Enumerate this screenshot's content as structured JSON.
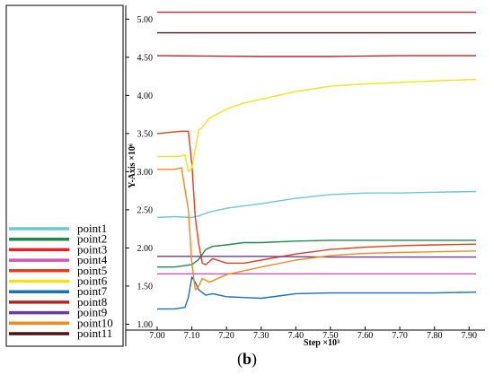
{
  "panel_label": {
    "open": "(",
    "letter": "b",
    "close": ")"
  },
  "chart_data": {
    "type": "line",
    "title": "",
    "xlabel": "Step ×10³",
    "ylabel": "Y-Axis ×10⁶",
    "xlim": [
      7.0,
      7.92
    ],
    "ylim": [
      0.97,
      5.18
    ],
    "xticks": [
      "7.00",
      "7.10",
      "7.20",
      "7.30",
      "7.40",
      "7.50",
      "7.60",
      "7.70",
      "7.80",
      "7.90"
    ],
    "yticks": [
      "1.00",
      "1.50",
      "2.00",
      "2.50",
      "3.00",
      "3.50",
      "4.00",
      "4.50",
      "5.00"
    ],
    "grid": false,
    "legend_position": "left-bottom",
    "series": [
      {
        "name": "point1",
        "color": "#6ec6d6",
        "x": [
          7.0,
          7.05,
          7.1,
          7.12,
          7.15,
          7.2,
          7.25,
          7.3,
          7.4,
          7.5,
          7.6,
          7.7,
          7.8,
          7.92
        ],
        "y": [
          2.4,
          2.41,
          2.4,
          2.42,
          2.47,
          2.52,
          2.55,
          2.58,
          2.65,
          2.7,
          2.72,
          2.72,
          2.73,
          2.74
        ]
      },
      {
        "name": "point2",
        "color": "#1f8a4a",
        "x": [
          7.0,
          7.05,
          7.1,
          7.12,
          7.14,
          7.16,
          7.2,
          7.25,
          7.3,
          7.4,
          7.5,
          7.6,
          7.7,
          7.8,
          7.92
        ],
        "y": [
          1.75,
          1.75,
          1.78,
          1.85,
          1.98,
          2.02,
          2.04,
          2.07,
          2.07,
          2.09,
          2.1,
          2.1,
          2.1,
          2.1,
          2.1
        ]
      },
      {
        "name": "point3",
        "color": "#e8202a",
        "x": [
          7.0,
          7.3,
          7.5,
          7.7,
          7.92
        ],
        "y": [
          5.09,
          5.09,
          5.09,
          5.09,
          5.09
        ]
      },
      {
        "name": "point4",
        "color": "#d057b4",
        "x": [
          7.0,
          7.3,
          7.5,
          7.7,
          7.92
        ],
        "y": [
          1.66,
          1.66,
          1.66,
          1.66,
          1.66
        ]
      },
      {
        "name": "point5",
        "color": "#e0401e",
        "x": [
          7.0,
          7.07,
          7.09,
          7.1,
          7.11,
          7.12,
          7.13,
          7.14,
          7.16,
          7.2,
          7.25,
          7.3,
          7.4,
          7.5,
          7.6,
          7.7,
          7.8,
          7.92
        ],
        "y": [
          3.5,
          3.53,
          3.53,
          3.1,
          2.4,
          2.05,
          1.8,
          1.78,
          1.86,
          1.8,
          1.8,
          1.84,
          1.92,
          1.98,
          2.01,
          2.03,
          2.04,
          2.05
        ]
      },
      {
        "name": "point6",
        "color": "#f5e11a",
        "x": [
          7.0,
          7.06,
          7.08,
          7.09,
          7.1,
          7.11,
          7.12,
          7.13,
          7.15,
          7.2,
          7.25,
          7.3,
          7.4,
          7.5,
          7.6,
          7.7,
          7.8,
          7.92
        ],
        "y": [
          3.2,
          3.2,
          3.22,
          3.0,
          3.05,
          3.3,
          3.55,
          3.58,
          3.7,
          3.82,
          3.9,
          3.95,
          4.05,
          4.12,
          4.15,
          4.17,
          4.19,
          4.21
        ]
      },
      {
        "name": "point7",
        "color": "#1a6fbf",
        "x": [
          7.0,
          7.05,
          7.08,
          7.09,
          7.1,
          7.11,
          7.12,
          7.14,
          7.16,
          7.2,
          7.25,
          7.3,
          7.35,
          7.4,
          7.5,
          7.6,
          7.7,
          7.8,
          7.92
        ],
        "y": [
          1.2,
          1.2,
          1.22,
          1.35,
          1.62,
          1.55,
          1.45,
          1.38,
          1.4,
          1.36,
          1.35,
          1.34,
          1.37,
          1.4,
          1.41,
          1.41,
          1.41,
          1.41,
          1.42
        ]
      },
      {
        "name": "point8",
        "color": "#b52525",
        "x": [
          7.0,
          7.3,
          7.5,
          7.7,
          7.92
        ],
        "y": [
          4.52,
          4.51,
          4.51,
          4.52,
          4.52
        ]
      },
      {
        "name": "point9",
        "color": "#6c3aa0",
        "x": [
          7.0,
          7.3,
          7.5,
          7.7,
          7.92
        ],
        "y": [
          1.89,
          1.89,
          1.88,
          1.88,
          1.88
        ]
      },
      {
        "name": "point10",
        "color": "#f08a1e",
        "x": [
          7.0,
          7.05,
          7.07,
          7.09,
          7.1,
          7.11,
          7.12,
          7.13,
          7.15,
          7.2,
          7.25,
          7.3,
          7.4,
          7.5,
          7.6,
          7.7,
          7.8,
          7.92
        ],
        "y": [
          3.03,
          3.03,
          3.05,
          2.5,
          1.8,
          1.45,
          1.5,
          1.6,
          1.55,
          1.65,
          1.7,
          1.75,
          1.84,
          1.9,
          1.93,
          1.94,
          1.95,
          1.96
        ]
      },
      {
        "name": "point11",
        "color": "#4a1515",
        "x": [
          7.0,
          7.3,
          7.5,
          7.7,
          7.92
        ],
        "y": [
          4.82,
          4.82,
          4.82,
          4.82,
          4.82
        ]
      }
    ]
  }
}
